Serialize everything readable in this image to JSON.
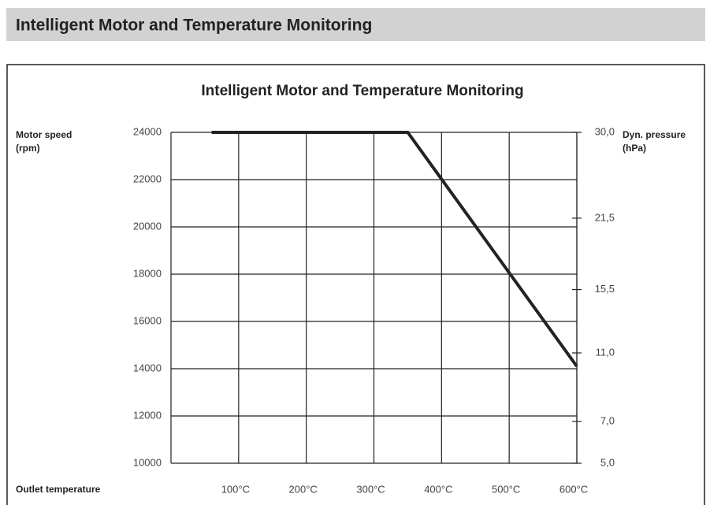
{
  "header": {
    "title": "Intelligent Motor and Temperature Monitoring"
  },
  "chart_data": {
    "type": "line",
    "title": "Intelligent Motor and Temperature Monitoring",
    "ylabel": [
      "Motor speed",
      "(rpm)"
    ],
    "y2label": [
      "Dyn. pressure",
      "(hPa)"
    ],
    "xlabel": "Outlet temperature",
    "x": [
      60,
      350,
      600
    ],
    "series": [
      {
        "name": "Motor speed",
        "color": "#222222",
        "values": [
          24000,
          24000,
          14100
        ]
      }
    ],
    "xlim": [
      0,
      600
    ],
    "xticks": [
      {
        "value": 100,
        "label": "100°C"
      },
      {
        "value": 200,
        "label": "200°C"
      },
      {
        "value": 300,
        "label": "300°C"
      },
      {
        "value": 400,
        "label": "400°C"
      },
      {
        "value": 500,
        "label": "500°C"
      },
      {
        "value": 600,
        "label": "600°C"
      }
    ],
    "ylim": [
      10000,
      24000
    ],
    "yticks": [
      10000,
      12000,
      14000,
      16000,
      18000,
      20000,
      22000,
      24000
    ],
    "y2lim": [
      5,
      30
    ],
    "y2scale": "sqrt",
    "y2ticks": [
      {
        "value": 30,
        "label": "30,0"
      },
      {
        "value": 21.5,
        "label": "21,5"
      },
      {
        "value": 15.5,
        "label": "15,5"
      },
      {
        "value": 11,
        "label": "11,0"
      },
      {
        "value": 7,
        "label": "7,0"
      },
      {
        "value": 5,
        "label": "5,0"
      }
    ],
    "grid": true
  }
}
